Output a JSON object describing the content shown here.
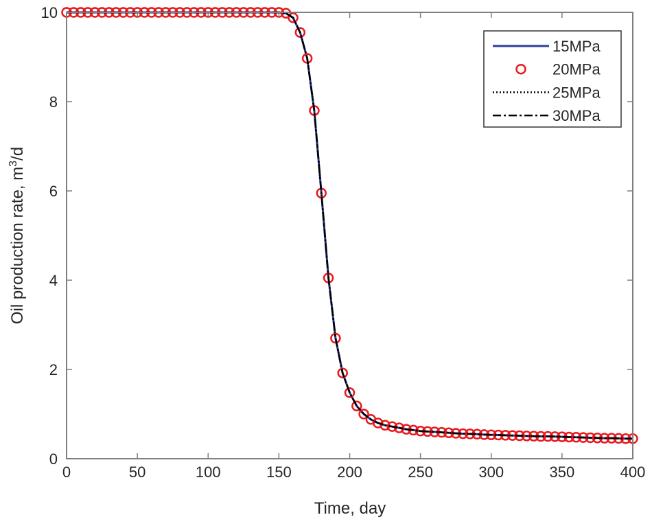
{
  "chart_data": {
    "type": "line",
    "title": "",
    "xlabel": "Time, day",
    "ylabel": "Oil production rate, m³/d",
    "ylabel_parts": {
      "pre": "Oil production rate, m",
      "sup": "3",
      "post": "/d"
    },
    "xlim": [
      0,
      400
    ],
    "ylim": [
      0,
      10
    ],
    "xticks": [
      0,
      50,
      100,
      150,
      200,
      250,
      300,
      350,
      400
    ],
    "yticks": [
      0,
      2,
      4,
      6,
      8,
      10
    ],
    "grid": false,
    "legend_position": "top-right",
    "x": [
      0,
      5,
      10,
      15,
      20,
      25,
      30,
      35,
      40,
      45,
      50,
      55,
      60,
      65,
      70,
      75,
      80,
      85,
      90,
      95,
      100,
      105,
      110,
      115,
      120,
      125,
      130,
      135,
      140,
      145,
      150,
      155,
      160,
      165,
      170,
      175,
      180,
      185,
      190,
      195,
      200,
      205,
      210,
      215,
      220,
      225,
      230,
      235,
      240,
      245,
      250,
      255,
      260,
      265,
      270,
      275,
      280,
      285,
      290,
      295,
      300,
      305,
      310,
      315,
      320,
      325,
      330,
      335,
      340,
      345,
      350,
      355,
      360,
      365,
      370,
      375,
      380,
      385,
      390,
      395,
      400
    ],
    "series": [
      {
        "name": "15MPa",
        "style": "solid",
        "color": "#2b3d9e",
        "values": [
          10,
          10,
          10,
          10,
          10,
          10,
          10,
          10,
          10,
          10,
          10,
          10,
          10,
          10,
          10,
          10,
          10,
          10,
          10,
          10,
          10,
          10,
          10,
          10,
          10,
          10,
          10,
          10,
          10,
          10,
          10,
          9.98,
          9.88,
          9.55,
          8.97,
          7.8,
          5.95,
          4.05,
          2.7,
          1.92,
          1.48,
          1.18,
          1.0,
          0.88,
          0.8,
          0.75,
          0.72,
          0.69,
          0.66,
          0.64,
          0.62,
          0.61,
          0.6,
          0.59,
          0.58,
          0.57,
          0.56,
          0.555,
          0.55,
          0.54,
          0.535,
          0.53,
          0.525,
          0.52,
          0.515,
          0.51,
          0.505,
          0.5,
          0.5,
          0.495,
          0.49,
          0.485,
          0.48,
          0.475,
          0.47,
          0.465,
          0.46,
          0.46,
          0.455,
          0.45,
          0.45
        ]
      },
      {
        "name": "20MPa",
        "style": "circle",
        "color": "#e8191d",
        "values": [
          10,
          10,
          10,
          10,
          10,
          10,
          10,
          10,
          10,
          10,
          10,
          10,
          10,
          10,
          10,
          10,
          10,
          10,
          10,
          10,
          10,
          10,
          10,
          10,
          10,
          10,
          10,
          10,
          10,
          10,
          10,
          9.98,
          9.88,
          9.55,
          8.97,
          7.8,
          5.95,
          4.05,
          2.7,
          1.92,
          1.48,
          1.18,
          1.0,
          0.88,
          0.8,
          0.75,
          0.72,
          0.69,
          0.66,
          0.64,
          0.62,
          0.61,
          0.6,
          0.59,
          0.58,
          0.57,
          0.56,
          0.555,
          0.55,
          0.54,
          0.535,
          0.53,
          0.525,
          0.52,
          0.515,
          0.51,
          0.505,
          0.5,
          0.5,
          0.495,
          0.49,
          0.485,
          0.48,
          0.475,
          0.47,
          0.465,
          0.46,
          0.46,
          0.455,
          0.45,
          0.45
        ]
      },
      {
        "name": "25MPa",
        "style": "dotted",
        "color": "#000000",
        "values": [
          10,
          10,
          10,
          10,
          10,
          10,
          10,
          10,
          10,
          10,
          10,
          10,
          10,
          10,
          10,
          10,
          10,
          10,
          10,
          10,
          10,
          10,
          10,
          10,
          10,
          10,
          10,
          10,
          10,
          10,
          10,
          9.98,
          9.88,
          9.55,
          8.97,
          7.8,
          5.95,
          4.05,
          2.7,
          1.92,
          1.48,
          1.18,
          1.0,
          0.88,
          0.8,
          0.75,
          0.72,
          0.69,
          0.66,
          0.64,
          0.62,
          0.61,
          0.6,
          0.59,
          0.58,
          0.57,
          0.56,
          0.555,
          0.55,
          0.54,
          0.535,
          0.53,
          0.525,
          0.52,
          0.515,
          0.51,
          0.505,
          0.5,
          0.5,
          0.495,
          0.49,
          0.485,
          0.48,
          0.475,
          0.47,
          0.465,
          0.46,
          0.46,
          0.455,
          0.45,
          0.45
        ]
      },
      {
        "name": "30MPa",
        "style": "dashdot",
        "color": "#000000",
        "values": [
          10,
          10,
          10,
          10,
          10,
          10,
          10,
          10,
          10,
          10,
          10,
          10,
          10,
          10,
          10,
          10,
          10,
          10,
          10,
          10,
          10,
          10,
          10,
          10,
          10,
          10,
          10,
          10,
          10,
          10,
          10,
          9.98,
          9.88,
          9.55,
          8.97,
          7.8,
          5.95,
          4.05,
          2.7,
          1.92,
          1.48,
          1.18,
          1.0,
          0.88,
          0.8,
          0.75,
          0.72,
          0.69,
          0.66,
          0.64,
          0.62,
          0.61,
          0.6,
          0.59,
          0.58,
          0.57,
          0.56,
          0.555,
          0.55,
          0.54,
          0.535,
          0.53,
          0.525,
          0.52,
          0.515,
          0.51,
          0.505,
          0.5,
          0.5,
          0.495,
          0.49,
          0.485,
          0.48,
          0.475,
          0.47,
          0.465,
          0.46,
          0.46,
          0.455,
          0.45,
          0.45
        ]
      }
    ]
  }
}
